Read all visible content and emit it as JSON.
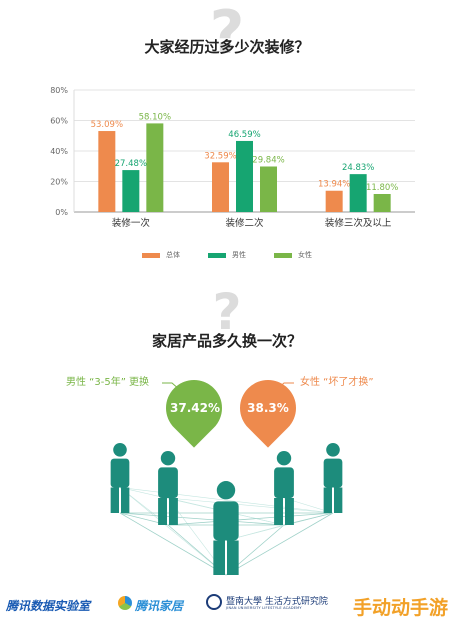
{
  "chart_data": {
    "type": "bar",
    "title": "大家经历过多少次装修？",
    "categories": [
      "装修一次",
      "装修二次",
      "装修三次及以上"
    ],
    "series": [
      {
        "name": "总体",
        "color": "#ee8a4d",
        "values": [
          53.09,
          32.59,
          13.94
        ]
      },
      {
        "name": "男性",
        "color": "#16a571",
        "values": [
          27.48,
          46.59,
          24.83
        ]
      },
      {
        "name": "女性",
        "color": "#7ab648",
        "values": [
          58.1,
          29.84,
          11.8
        ]
      }
    ],
    "value_labels": [
      [
        "53.09%",
        "32.59%",
        "13.94%"
      ],
      [
        "27.48%",
        "46.59%",
        "24.83%"
      ],
      [
        "58.10%",
        "29.84%",
        "11.80%"
      ]
    ],
    "yticks": [
      "0%",
      "20%",
      "40%",
      "60%",
      "80%"
    ],
    "ylim": [
      0,
      80
    ],
    "grid": true,
    "legend_placement": "bottom"
  },
  "section2": {
    "title": "家居产品多久换一次？",
    "male": {
      "caption": "男性 “3-5年” 更换",
      "value": "37.42%",
      "color": "#7ab648"
    },
    "female": {
      "caption": "女性 “坏了才换”",
      "value": "38.3%",
      "color": "#ee8a4d"
    }
  },
  "people_color": "#1d8c7c",
  "footer": {
    "brand1": "腾讯数据实验室",
    "brand2": "腾讯家居",
    "brand3": "暨南大學 生活方式研究院",
    "brand3_sub": "JINAN UNIVERSITY LIFESTYLE ACADEMY",
    "watermark": "手动动手游"
  },
  "icons": [
    "question-mark-icon",
    "map-pin-icon",
    "person-icon"
  ]
}
